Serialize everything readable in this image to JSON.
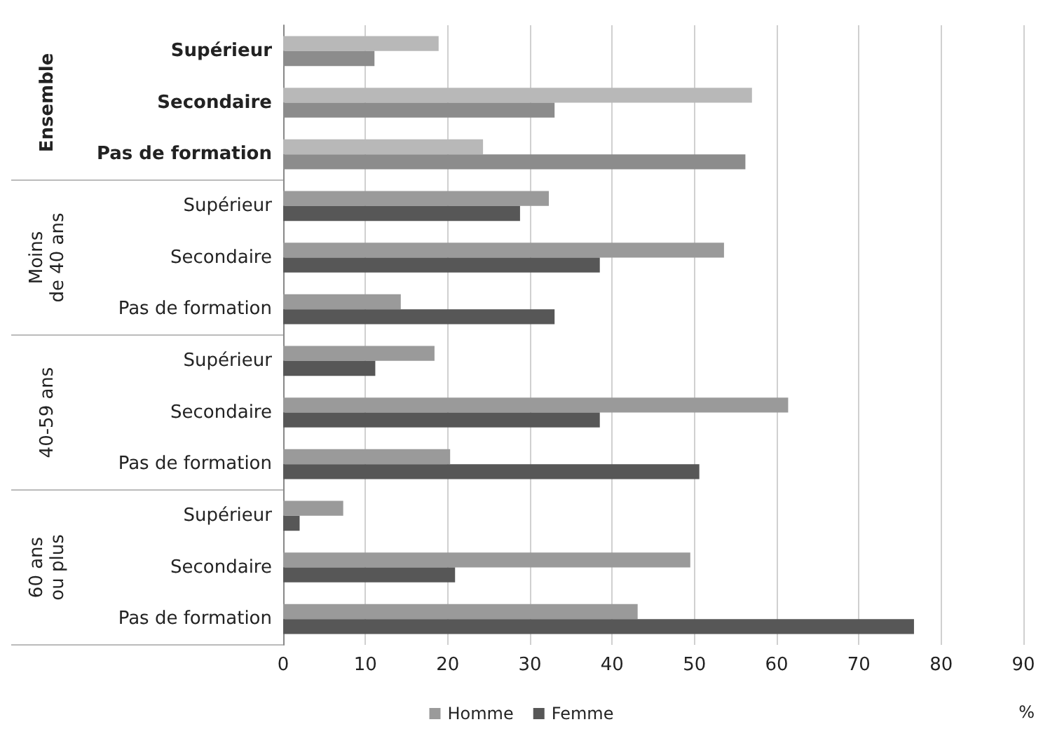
{
  "chart_data": {
    "type": "bar",
    "orientation": "horizontal",
    "categories": [
      "Supérieur",
      "Secondaire",
      "Pas de formation",
      "Supérieur",
      "Secondaire",
      "Pas de formation",
      "Supérieur",
      "Secondaire",
      "Pas de formation",
      "Supérieur",
      "Secondaire",
      "Pas de formation"
    ],
    "series": [
      {
        "name": "Homme",
        "color": "#9a9a9a",
        "colors": [
          "#b8b8b8",
          "#b8b8b8",
          "#b8b8b8",
          "#9a9a9a",
          "#9a9a9a",
          "#9a9a9a",
          "#9a9a9a",
          "#9a9a9a",
          "#9a9a9a",
          "#9a9a9a",
          "#9a9a9a",
          "#9a9a9a"
        ],
        "values": [
          18.9,
          57,
          24.3,
          32.3,
          53.6,
          14.3,
          18.4,
          61.4,
          20.3,
          7.3,
          49.5,
          43.1
        ]
      },
      {
        "name": "Femme",
        "color": "#575757",
        "colors": [
          "#8c8c8c",
          "#8c8c8c",
          "#8c8c8c",
          "#575757",
          "#575757",
          "#575757",
          "#575757",
          "#575757",
          "#575757",
          "#575757",
          "#575757",
          "#575757"
        ],
        "values": [
          11.1,
          33,
          56.2,
          28.8,
          38.5,
          33,
          11.2,
          38.5,
          50.6,
          2,
          20.9,
          76.7
        ]
      }
    ],
    "xlabel": "%",
    "xlim": [
      0,
      90
    ],
    "xticks": [
      0,
      10,
      20,
      30,
      40,
      50,
      60,
      70,
      80,
      90
    ],
    "grid": "x",
    "legend": "bottom",
    "annotations": [
      "Ensemble",
      "Moins\nde 40 ans",
      "40-59 ans",
      "60 ans\nou plus"
    ]
  }
}
